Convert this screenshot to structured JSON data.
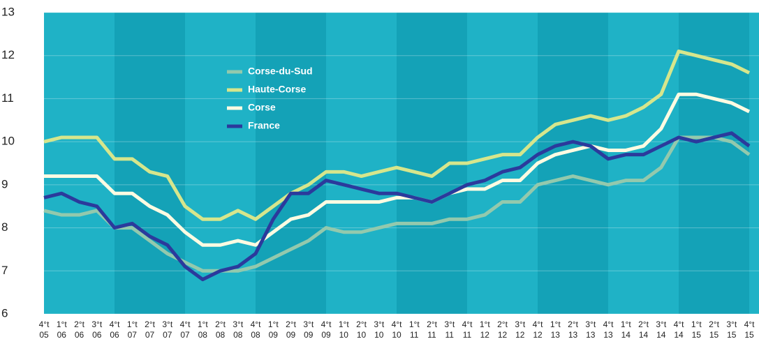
{
  "chart_data": {
    "type": "line",
    "categories": [
      "4°t 05",
      "1°t 06",
      "2°t 06",
      "3°t 06",
      "4°t 06",
      "1°t 07",
      "2°t 07",
      "3°t 07",
      "4°t 07",
      "1°t 08",
      "2°t 08",
      "3°t 08",
      "4°t 08",
      "1°t 09",
      "2°t 09",
      "3°t 09",
      "4°t 09",
      "1°t 10",
      "2°t 10",
      "3°t 10",
      "4°t 10",
      "1°t 11",
      "2°t 11",
      "3°t 11",
      "4°t 11",
      "1°t 12",
      "2°t 12",
      "3°t 12",
      "4°t 12",
      "1°t 13",
      "2°t 13",
      "3°t 13",
      "4°t 13",
      "1°t 14",
      "2°t 14",
      "3°t 14",
      "4°t 14",
      "1°t 15",
      "2°t 15",
      "3°t 15",
      "4°t 15"
    ],
    "series": [
      {
        "name": "Corse-du-Sud",
        "color": "#93c9ad",
        "values": [
          8.4,
          8.3,
          8.3,
          8.4,
          8.0,
          8.0,
          7.7,
          7.4,
          7.2,
          7.0,
          7.0,
          7.0,
          7.1,
          7.3,
          7.5,
          7.7,
          8.0,
          7.9,
          7.9,
          8.0,
          8.1,
          8.1,
          8.1,
          8.2,
          8.2,
          8.3,
          8.6,
          8.6,
          9.0,
          9.1,
          9.2,
          9.1,
          9.0,
          9.1,
          9.1,
          9.4,
          10.1,
          10.1,
          10.1,
          10.0,
          9.7
        ]
      },
      {
        "name": "Haute-Corse",
        "color": "#d6e68c",
        "values": [
          10.0,
          10.1,
          10.1,
          10.1,
          9.6,
          9.6,
          9.3,
          9.2,
          8.5,
          8.2,
          8.2,
          8.4,
          8.2,
          8.5,
          8.8,
          9.0,
          9.3,
          9.3,
          9.2,
          9.3,
          9.4,
          9.3,
          9.2,
          9.5,
          9.5,
          9.6,
          9.7,
          9.7,
          10.1,
          10.4,
          10.5,
          10.6,
          10.5,
          10.6,
          10.8,
          11.1,
          12.1,
          12.0,
          11.9,
          11.8,
          11.6
        ]
      },
      {
        "name": "Corse",
        "color": "#fffbe2",
        "values": [
          9.2,
          9.2,
          9.2,
          9.2,
          8.8,
          8.8,
          8.5,
          8.3,
          7.9,
          7.6,
          7.6,
          7.7,
          7.6,
          7.9,
          8.2,
          8.3,
          8.6,
          8.6,
          8.6,
          8.6,
          8.7,
          8.7,
          8.6,
          8.8,
          8.9,
          8.9,
          9.1,
          9.1,
          9.5,
          9.7,
          9.8,
          9.9,
          9.8,
          9.8,
          9.9,
          10.3,
          11.1,
          11.1,
          11.0,
          10.9,
          10.7
        ]
      },
      {
        "name": "France",
        "color": "#2b3a9c",
        "values": [
          8.7,
          8.8,
          8.6,
          8.5,
          8.0,
          8.1,
          7.8,
          7.6,
          7.1,
          6.8,
          7.0,
          7.1,
          7.4,
          8.2,
          8.8,
          8.8,
          9.1,
          9.0,
          8.9,
          8.8,
          8.8,
          8.7,
          8.6,
          8.8,
          9.0,
          9.1,
          9.3,
          9.4,
          9.7,
          9.9,
          10.0,
          9.9,
          9.6,
          9.7,
          9.7,
          9.9,
          10.1,
          10.0,
          10.1,
          10.2,
          9.9
        ]
      }
    ],
    "ylim": [
      6,
      13
    ],
    "yticks": [
      6,
      7,
      8,
      9,
      10,
      11,
      12,
      13
    ],
    "grid": true,
    "legend": "upper left"
  }
}
